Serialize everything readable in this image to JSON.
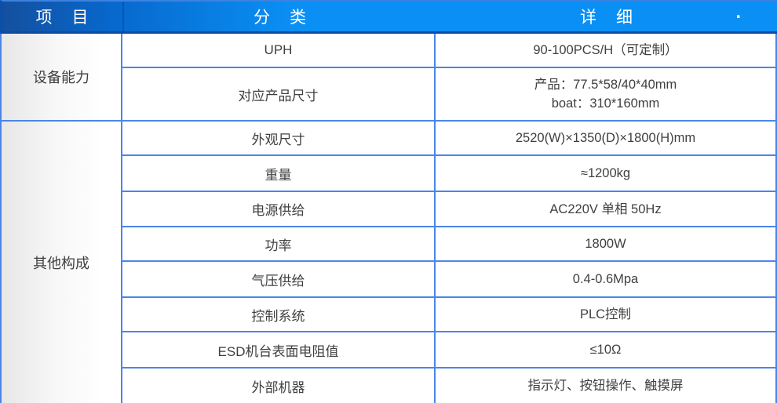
{
  "table": {
    "columns": [
      {
        "label": "项　目"
      },
      {
        "label": "分　类"
      },
      {
        "label": "详　细"
      }
    ],
    "header_dot": ".",
    "groups": [
      {
        "item": "设备能力",
        "rows": [
          {
            "category": "UPH",
            "detail": "90-100PCS/H（可定制）"
          },
          {
            "category": "对应产品尺寸",
            "detail": "产品：77.5*58/40*40mm\nboat：310*160mm"
          }
        ]
      },
      {
        "item": "其他构成",
        "rows": [
          {
            "category": "外观尺寸",
            "detail": "2520(W)×1350(D)×1800(H)mm"
          },
          {
            "category": "重量",
            "detail": "≈1200kg"
          },
          {
            "category": "电源供给",
            "detail": "AC220V 单相 50Hz"
          },
          {
            "category": "功率",
            "detail": "1800W"
          },
          {
            "category": "气压供给",
            "detail": "0.4-0.6Mpa"
          },
          {
            "category": "控制系统",
            "detail": "PLC控制"
          },
          {
            "category": "ESD机台表面电阻值",
            "detail": "≤10Ω"
          },
          {
            "category": "外部机器",
            "detail": "指示灯、按钮操作、触摸屏"
          }
        ]
      }
    ]
  },
  "colors": {
    "header_blue_bright": "#0a90f5",
    "header_blue_dark": "#14509f",
    "header_border_navy": "#0b4aa6",
    "grid_line_blue": "#4a86e8",
    "item_column_gray": "#e7e7e7",
    "text": "#3f3f3f"
  }
}
